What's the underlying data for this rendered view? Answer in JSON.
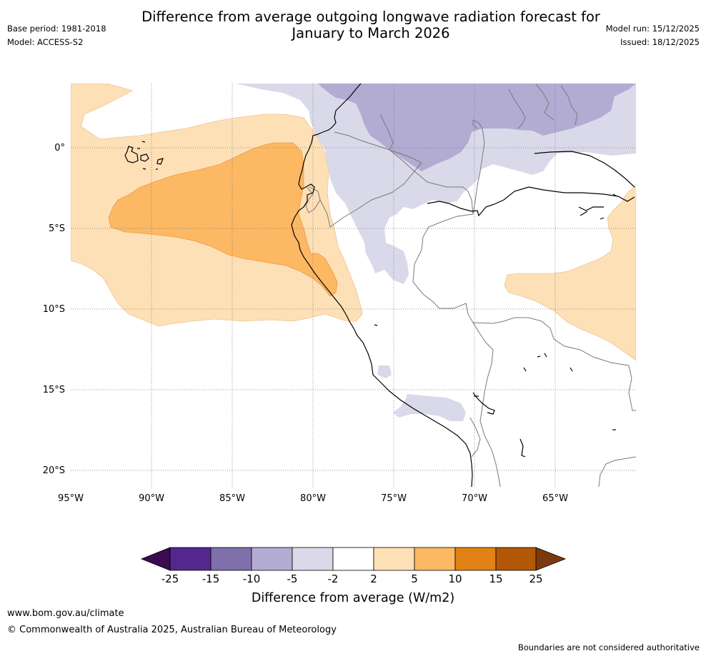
{
  "title": {
    "line1": "Difference from average outgoing longwave radiation forecast for",
    "line2": "January to March 2026"
  },
  "meta": {
    "base_period": "Base period: 1981-2018",
    "model": "Model: ACCESS-S2",
    "model_run": "Model run: 15/12/2025",
    "issued": "Issued: 18/12/2025"
  },
  "map": {
    "lon_ticks": [
      "95°W",
      "90°W",
      "85°W",
      "80°W",
      "75°W",
      "70°W",
      "65°W"
    ],
    "lat_ticks": [
      "0°",
      "5°S",
      "10°S",
      "15°S",
      "20°S"
    ]
  },
  "colorbar": {
    "xlabel": "Difference from average (W/m2)",
    "tick_labels": [
      "-25",
      "-15",
      "-10",
      "-5",
      "-2",
      "2",
      "5",
      "10",
      "15",
      "25"
    ],
    "under_color": "#3c0b4f",
    "over_color": "#7c3a0c",
    "bin_colors": [
      "#54278f",
      "#7f6faa",
      "#b2abd2",
      "#d9d9ea",
      "#ffffff",
      "#fee0b6",
      "#fdb863",
      "#e08214",
      "#b35806"
    ]
  },
  "footer": {
    "website": "www.bom.gov.au/climate",
    "copyright": "© Commonwealth of Australia 2025, Australian Bureau of Meteorology",
    "disclaimer": "Boundaries are not considered authoritative"
  }
}
